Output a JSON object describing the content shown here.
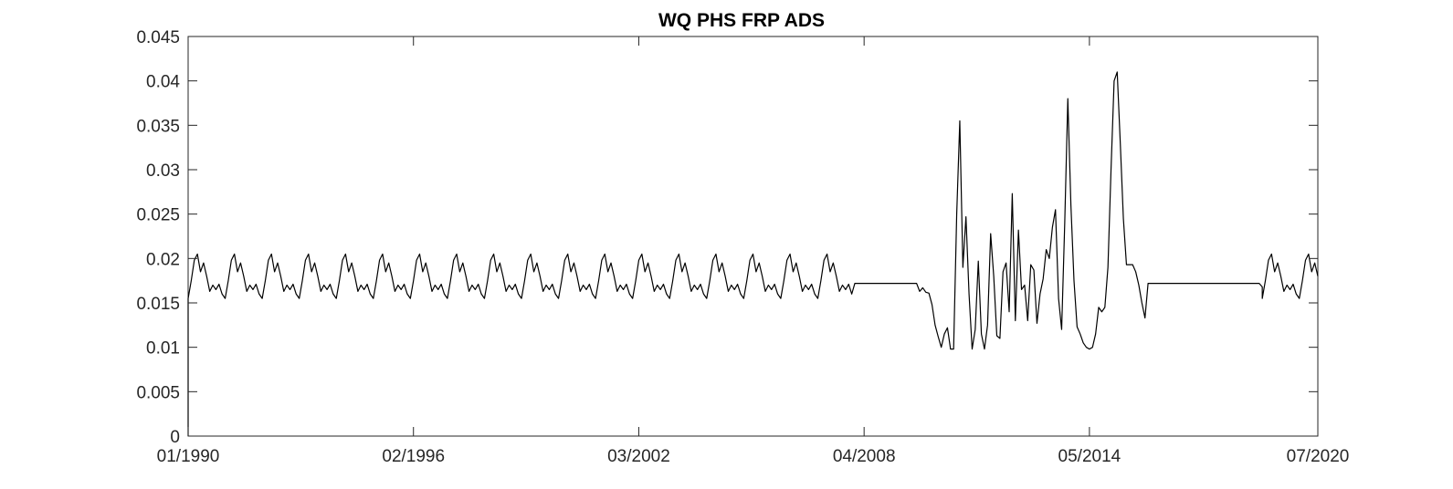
{
  "chart_data": {
    "type": "line",
    "title": "WQ PHS FRP ADS",
    "xlabel": "",
    "ylabel": "",
    "grid": false,
    "legend": "none",
    "line_color": "#000000",
    "x_ticks": [
      "01/1990",
      "02/1996",
      "03/2002",
      "04/2008",
      "05/2014",
      "07/2020"
    ],
    "y_ticks": [
      "0",
      "0.005",
      "0.01",
      "0.015",
      "0.02",
      "0.025",
      "0.03",
      "0.035",
      "0.04",
      "0.045"
    ],
    "xlim": [
      "1990-01",
      "2020-07"
    ],
    "ylim": [
      0,
      0.045
    ],
    "seasonal_pattern_monthly": [
      0.0155,
      0.0175,
      0.0198,
      0.0205,
      0.0185,
      0.0195,
      0.018,
      0.0163,
      0.017,
      0.0165,
      0.0171,
      0.016
    ],
    "series": [
      {
        "segments": [
          {
            "pattern": "seasonal",
            "start": "1990-01",
            "end": "2007-12"
          },
          {
            "x": [
              "1990-01"
            ],
            "y": [
              0.0
            ]
          },
          {
            "x": [
              "2008-01",
              "2009-09",
              "2009-10",
              "2009-11",
              "2009-12",
              "2010-01",
              "2010-02",
              "2010-03",
              "2010-04",
              "2010-05",
              "2010-06",
              "2010-07",
              "2010-08",
              "2010-09",
              "2010-10",
              "2010-11",
              "2010-12",
              "2011-01",
              "2011-02",
              "2011-03",
              "2011-04",
              "2011-05",
              "2011-06",
              "2011-07",
              "2011-08",
              "2011-09",
              "2011-10",
              "2011-11",
              "2011-12",
              "2012-01",
              "2012-02",
              "2012-03",
              "2012-04",
              "2012-05",
              "2012-06",
              "2012-07",
              "2012-08",
              "2012-09",
              "2012-10",
              "2012-11",
              "2012-12",
              "2013-01",
              "2013-02",
              "2013-03",
              "2013-04",
              "2013-05",
              "2013-06",
              "2013-07",
              "2013-08",
              "2013-09",
              "2013-10",
              "2013-11",
              "2013-12",
              "2014-01",
              "2014-02",
              "2014-03",
              "2014-04",
              "2014-05",
              "2014-06",
              "2014-07",
              "2014-08",
              "2014-09",
              "2014-10",
              "2014-11",
              "2014-12",
              "2015-01",
              "2015-02",
              "2015-03",
              "2015-04",
              "2015-05",
              "2015-06",
              "2015-07",
              "2015-08",
              "2015-09",
              "2015-10",
              "2015-11",
              "2015-12",
              "2016-01",
              "2016-02",
              "2016-03",
              "2016-04",
              "2016-05",
              "2016-06",
              "2016-07",
              "2018-12",
              "2019-01"
            ],
            "y": [
              0.0172,
              0.0172,
              0.0163,
              0.0167,
              0.0162,
              0.0161,
              0.0148,
              0.0125,
              0.0112,
              0.01,
              0.0115,
              0.0122,
              0.0098,
              0.0098,
              0.025,
              0.0355,
              0.019,
              0.0247,
              0.016,
              0.0098,
              0.012,
              0.0197,
              0.0115,
              0.0098,
              0.0125,
              0.0228,
              0.018,
              0.0113,
              0.011,
              0.0185,
              0.0195,
              0.014,
              0.0273,
              0.013,
              0.0232,
              0.0165,
              0.017,
              0.013,
              0.0193,
              0.0187,
              0.0127,
              0.016,
              0.0177,
              0.021,
              0.02,
              0.0235,
              0.0255,
              0.0155,
              0.012,
              0.024,
              0.038,
              0.026,
              0.0175,
              0.0123,
              0.0115,
              0.0105,
              0.01,
              0.0098,
              0.01,
              0.0115,
              0.0145,
              0.014,
              0.0145,
              0.019,
              0.03,
              0.04,
              0.041,
              0.033,
              0.0245,
              0.0193,
              0.0193,
              0.0193,
              0.0185,
              0.017,
              0.015,
              0.0133,
              0.0172,
              0.0172,
              0.0172,
              0.0172,
              0.0172,
              0.0172,
              0.0172,
              0.0172,
              0.0172,
              0.0168
            ]
          },
          {
            "pattern": "seasonal",
            "start": "2019-01",
            "end": "2020-07"
          }
        ]
      }
    ]
  }
}
